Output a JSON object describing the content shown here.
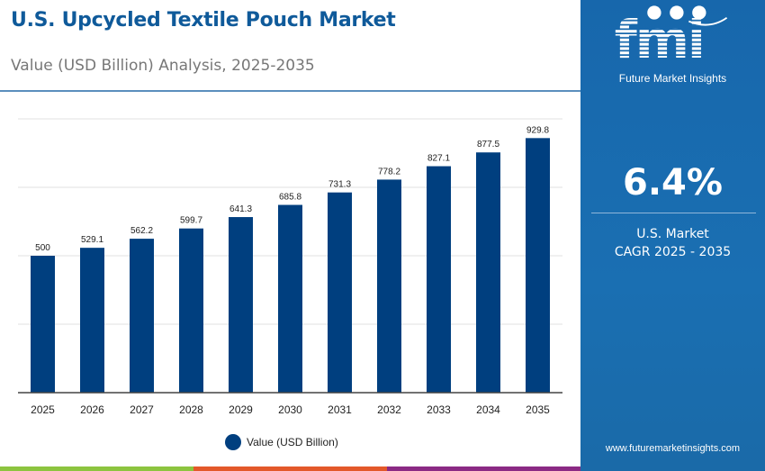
{
  "header": {
    "title": "U.S. Upcycled Textile Pouch Market",
    "subtitle": "Value (USD Billion) Analysis, 2025-2035"
  },
  "panel": {
    "logo_text": "fmi",
    "brand": "Future Market Insights",
    "cagr_value": "6.4%",
    "cagr_label_1": "U.S. Market",
    "cagr_label_2": "CAGR 2025 - 2035",
    "url": "www.futuremarketinsights.com"
  },
  "colors": {
    "bar": "#003f7f",
    "title": "#0f5a9a",
    "panel": "#1767ac",
    "stripes": [
      "#8cc43f",
      "#e3582a",
      "#8b2a84"
    ]
  },
  "chart_data": {
    "type": "bar",
    "title": "",
    "xlabel": "",
    "ylabel": "",
    "categories": [
      "2025",
      "2026",
      "2027",
      "2028",
      "2029",
      "2030",
      "2031",
      "2032",
      "2033",
      "2034",
      "2035"
    ],
    "series": [
      {
        "name": "Value (USD Billion)",
        "values": [
          500,
          529.1,
          562.2,
          599.7,
          641.3,
          685.8,
          731.3,
          778.2,
          827.1,
          877.5,
          929.8
        ]
      }
    ],
    "ylim": [
      0,
      1000
    ],
    "grid": true,
    "gridline_step": 250,
    "legend": "bottom-center",
    "data_labels": true
  }
}
